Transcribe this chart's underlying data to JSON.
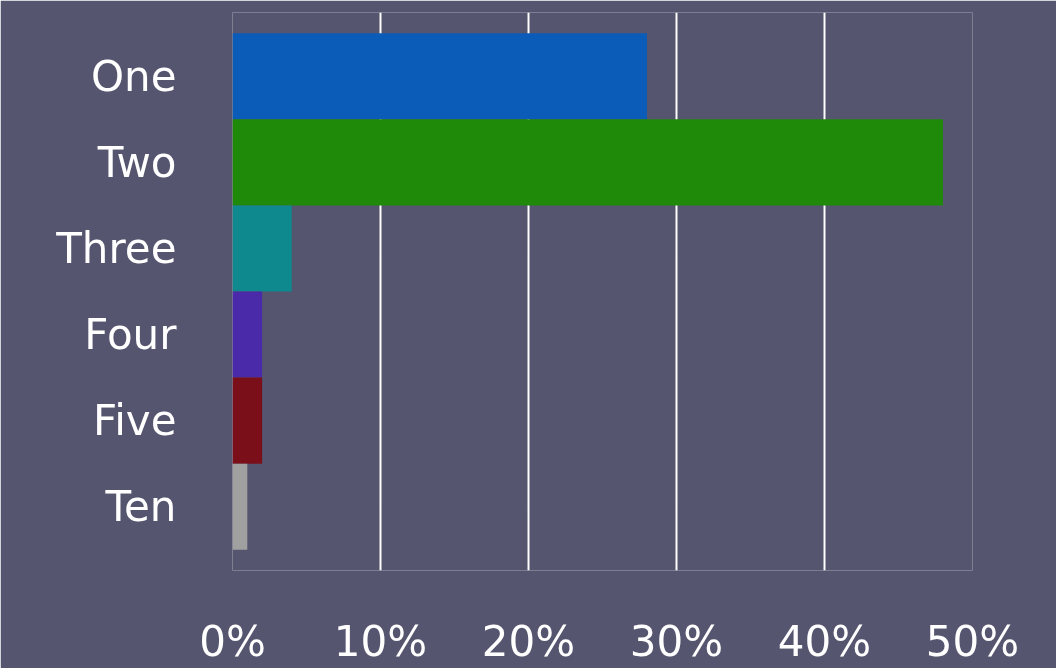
{
  "chart_data": {
    "type": "bar",
    "orientation": "horizontal",
    "categories": [
      "One",
      "Two",
      "Three",
      "Four",
      "Five",
      "Ten"
    ],
    "values": [
      28,
      48,
      4,
      2,
      2,
      1
    ],
    "colors": [
      "#0a5cb8",
      "#1f8a0a",
      "#0e8a8e",
      "#4a2aa8",
      "#7a0f1a",
      "#a0a0a0"
    ],
    "xlim": [
      0,
      50
    ],
    "xticks": [
      {
        "value": 0,
        "label": "0%"
      },
      {
        "value": 10,
        "label": "10%"
      },
      {
        "value": 20,
        "label": "20%"
      },
      {
        "value": 30,
        "label": "30%"
      },
      {
        "value": 40,
        "label": "40%"
      },
      {
        "value": 50,
        "label": "50%"
      }
    ],
    "grid": "x"
  }
}
